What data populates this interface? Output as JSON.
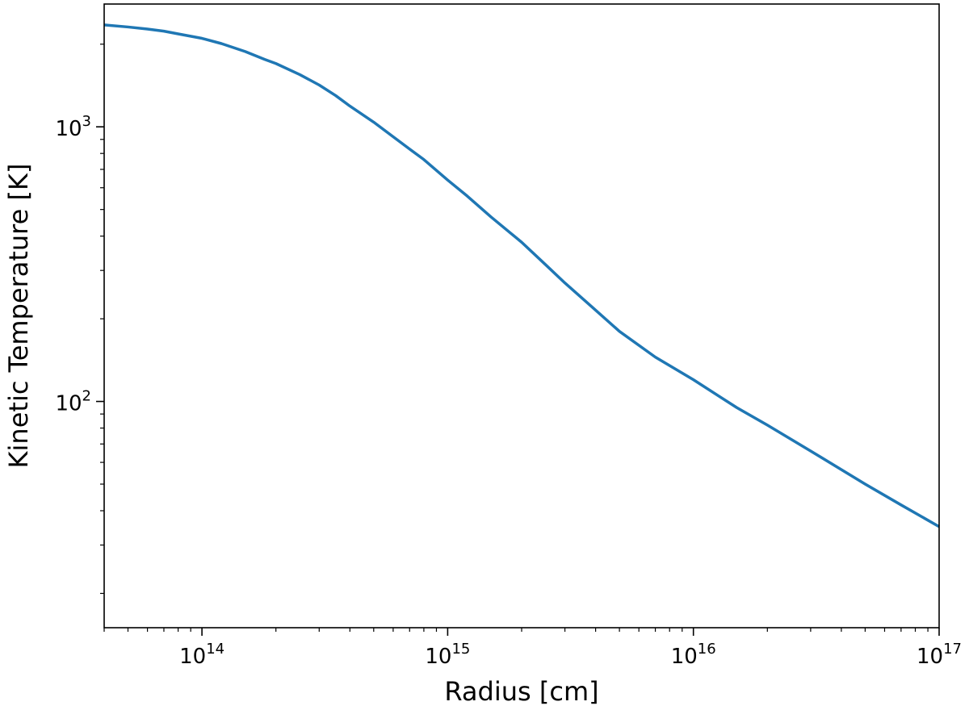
{
  "chart_data": {
    "type": "line",
    "xlabel": "Radius [cm]",
    "ylabel": "Kinetic Temperature [K]",
    "xscale": "log",
    "yscale": "log",
    "xlim": [
      40000000000000.0,
      1e+17
    ],
    "ylim": [
      15,
      2800
    ],
    "grid": false,
    "x_ticks": [
      {
        "value": 100000000000000.0,
        "base": "10",
        "exp": "14"
      },
      {
        "value": 1000000000000000.0,
        "base": "10",
        "exp": "15"
      },
      {
        "value": 1e+16,
        "base": "10",
        "exp": "16"
      },
      {
        "value": 1e+17,
        "base": "10",
        "exp": "17"
      }
    ],
    "y_ticks": [
      {
        "value": 100,
        "base": "10",
        "exp": "2"
      },
      {
        "value": 1000,
        "base": "10",
        "exp": "3"
      }
    ],
    "series": [
      {
        "color": "#1f77b4",
        "points": [
          [
            40000000000000.0,
            2350
          ],
          [
            50000000000000.0,
            2310
          ],
          [
            60000000000000.0,
            2270
          ],
          [
            70000000000000.0,
            2230
          ],
          [
            80000000000000.0,
            2180
          ],
          [
            100000000000000.0,
            2100
          ],
          [
            120000000000000.0,
            2010
          ],
          [
            150000000000000.0,
            1880
          ],
          [
            180000000000000.0,
            1760
          ],
          [
            200000000000000.0,
            1700
          ],
          [
            250000000000000.0,
            1550
          ],
          [
            300000000000000.0,
            1420
          ],
          [
            350000000000000.0,
            1300
          ],
          [
            400000000000000.0,
            1190
          ],
          [
            500000000000000.0,
            1040
          ],
          [
            600000000000000.0,
            920
          ],
          [
            700000000000000.0,
            830
          ],
          [
            800000000000000.0,
            760
          ],
          [
            1000000000000000.0,
            640
          ],
          [
            1200000000000000.0,
            560
          ],
          [
            1500000000000000.0,
            470
          ],
          [
            2000000000000000.0,
            380
          ],
          [
            2500000000000000.0,
            315
          ],
          [
            3000000000000000.0,
            270
          ],
          [
            4000000000000000.0,
            215
          ],
          [
            5000000000000000.0,
            180
          ],
          [
            7000000000000000.0,
            145
          ],
          [
            1e+16,
            120
          ],
          [
            1.5e+16,
            95
          ],
          [
            2e+16,
            82
          ],
          [
            3e+16,
            66
          ],
          [
            5e+16,
            50
          ],
          [
            7e+16,
            42
          ],
          [
            1e+17,
            35
          ]
        ]
      }
    ]
  }
}
